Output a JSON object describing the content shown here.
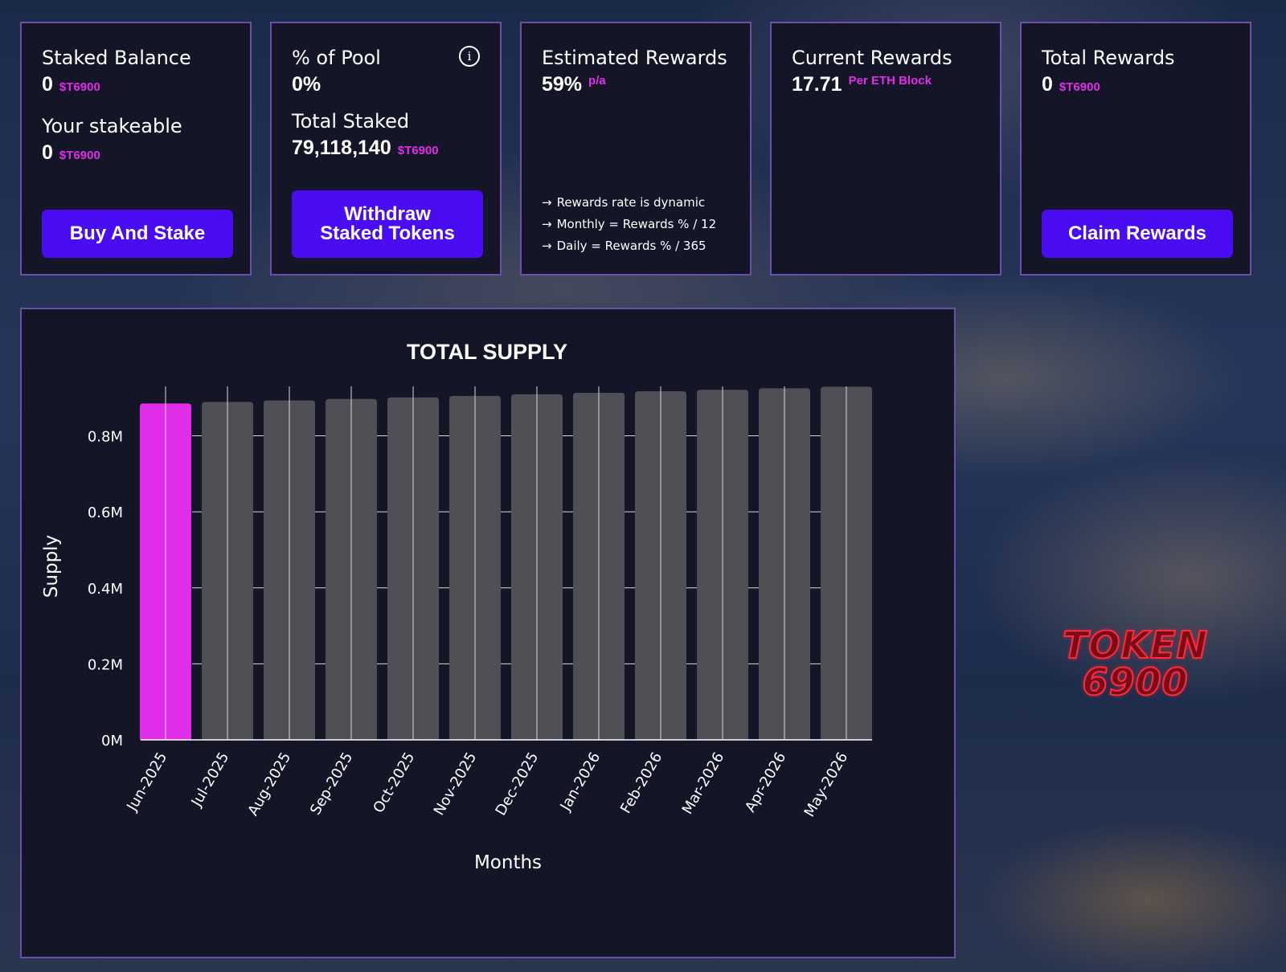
{
  "cards": {
    "staked_balance": {
      "title": "Staked Balance",
      "value": "0",
      "unit": "$T6900",
      "stakeable_title": "Your stakeable",
      "stakeable_value": "0",
      "stakeable_unit": "$T6900",
      "button": "Buy And Stake"
    },
    "pool": {
      "title": "% of Pool",
      "info_icon": "i",
      "value": "0%",
      "total_staked_title": "Total Staked",
      "total_staked_value": "79,118,140",
      "total_staked_unit": "$T6900",
      "button_line1": "Withdraw",
      "button_line2": "Staked Tokens"
    },
    "estimated": {
      "title": "Estimated Rewards",
      "value": "59%",
      "unit": "p/a",
      "arrow": "→",
      "notes": [
        "Rewards rate is dynamic",
        "Monthly = Rewards % / 12",
        "Daily = Rewards % / 365"
      ]
    },
    "current": {
      "title": "Current Rewards",
      "value": "17.71",
      "unit": "Per ETH Block"
    },
    "total": {
      "title": "Total Rewards",
      "value": "0",
      "unit": "$T6900",
      "button": "Claim Rewards"
    }
  },
  "logo": {
    "line1": "TOKEN",
    "line2": "6900"
  },
  "colors": {
    "accent": "#4a0cf2",
    "highlight": "#e02ee8",
    "bar": "#4f4f55",
    "panel": "#141628",
    "border": "#6b4fa8"
  },
  "chart_data": {
    "type": "bar",
    "title": "TOTAL SUPPLY",
    "xlabel": "Months",
    "ylabel": "Supply",
    "categories": [
      "Jun-2025",
      "Jul-2025",
      "Aug-2025",
      "Sep-2025",
      "Oct-2025",
      "Nov-2025",
      "Dec-2025",
      "Jan-2026",
      "Feb-2026",
      "Mar-2026",
      "Apr-2026",
      "May-2026"
    ],
    "values": [
      885000,
      889000,
      893000,
      897000,
      901000,
      905000,
      909000,
      913000,
      917000,
      921000,
      925000,
      929000
    ],
    "highlight_index": 0,
    "ylim": [
      0,
      930000
    ],
    "yticks": [
      0,
      200000,
      400000,
      600000,
      800000
    ],
    "ytick_labels": [
      "0M",
      "0.2M",
      "0.4M",
      "0.6M",
      "0.8M"
    ],
    "grid": true
  }
}
